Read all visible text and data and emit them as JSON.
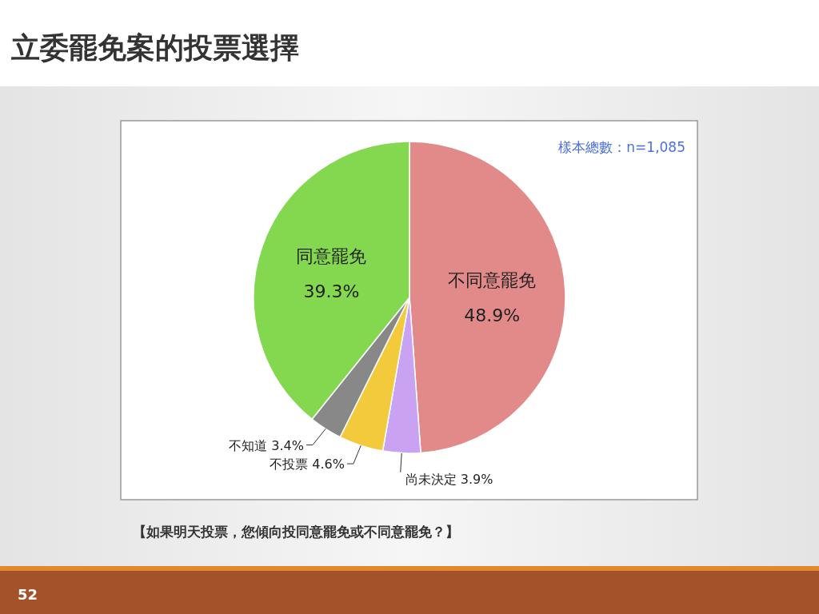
{
  "chart_data": {
    "type": "pie",
    "title": "立委罷免案的投票選擇",
    "categories": [
      "不同意罷免",
      "尚未決定",
      "不投票",
      "不知道",
      "同意罷免"
    ],
    "values": [
      48.9,
      3.9,
      4.6,
      3.4,
      39.3
    ],
    "colors": [
      "#e28a8a",
      "#c9a2f2",
      "#f2ca3c",
      "#888888",
      "#84d850"
    ],
    "value_labels": [
      "48.9%",
      "3.9%",
      "4.6%",
      "3.4%",
      "39.3%"
    ],
    "annotations": [
      "樣本總數：n=1,085",
      "【如果明天投票，您傾向投同意罷免或不同意罷免？】",
      "52"
    ]
  }
}
